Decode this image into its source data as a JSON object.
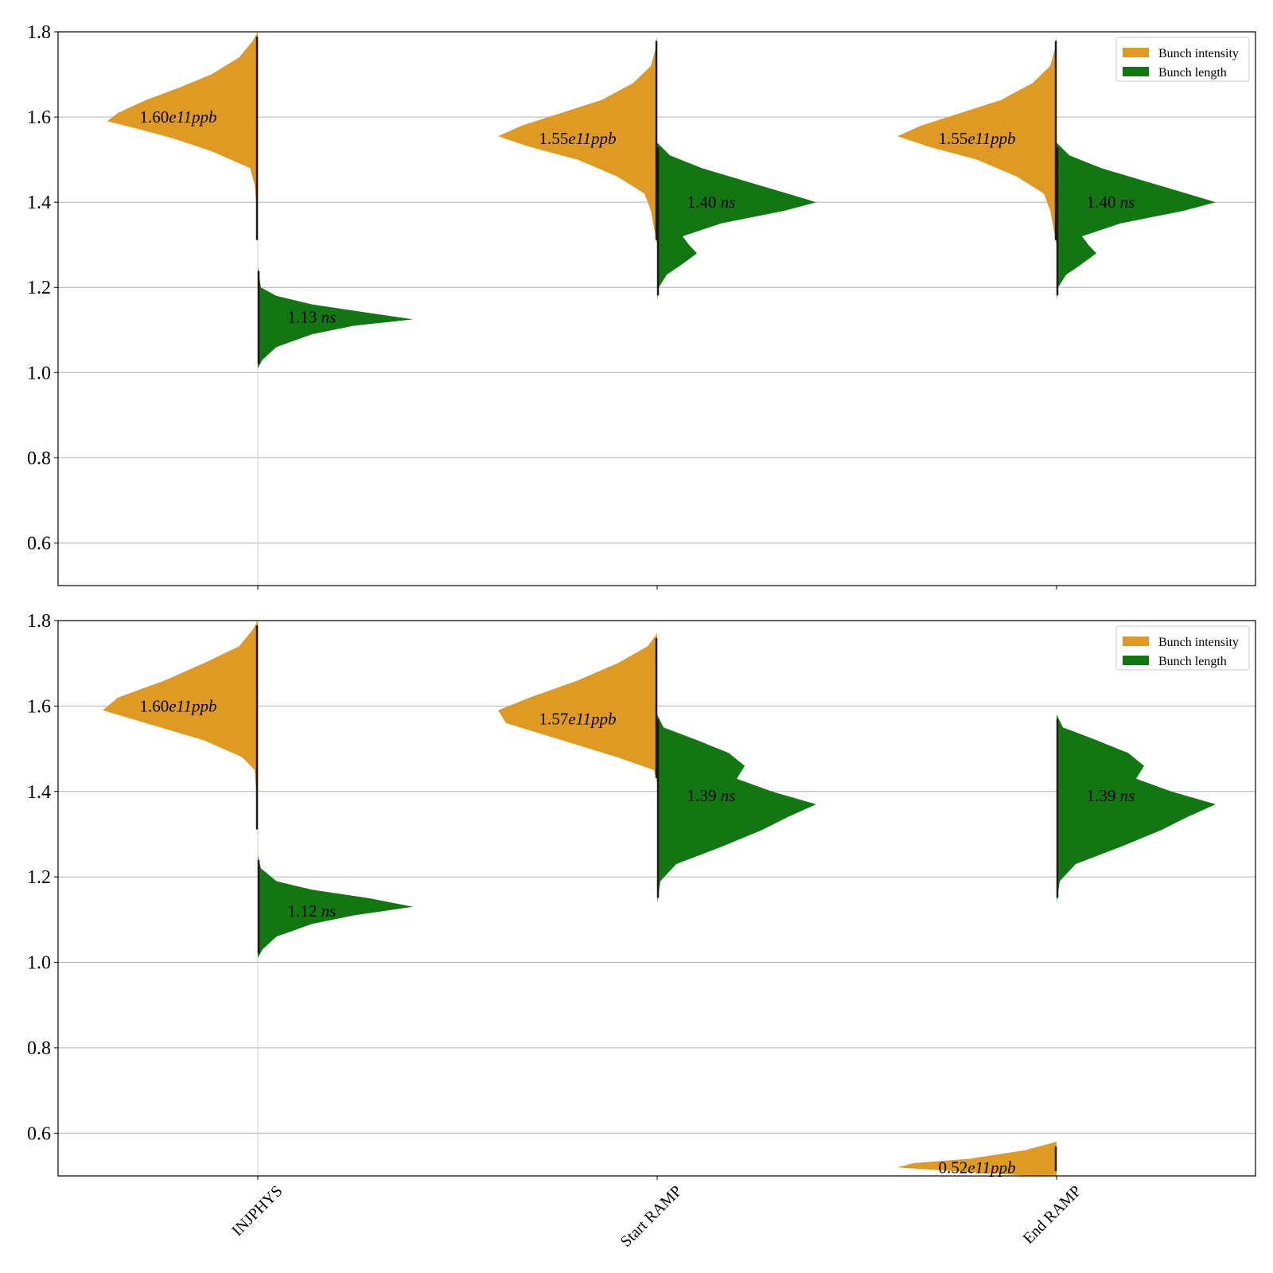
{
  "colors": {
    "intensity": "#DE9A22",
    "length": "#127612",
    "grid": "#b0b0b0",
    "median_line": "#1a1a1a"
  },
  "chart_data": [
    {
      "type": "violin",
      "ylim": [
        0.5,
        1.8
      ],
      "yticks": [
        "0.6",
        "0.8",
        "1.0",
        "1.2",
        "1.4",
        "1.6",
        "1.8"
      ],
      "grid": "horizontal",
      "categories": [
        "INJPHYS",
        "Start RAMP",
        "End RAMP"
      ],
      "legend": {
        "placement": "top-right",
        "entries": [
          "Bunch intensity",
          "Bunch length"
        ]
      },
      "series": [
        {
          "name": "Bunch intensity",
          "side": "left",
          "violins": [
            {
              "category": "INJPHYS",
              "median": 1.6,
              "label": {
                "value": "1.60",
                "unit": "e11ppb"
              },
              "profile": [
                [
                  1.3,
                  0.0
                ],
                [
                  1.4,
                  0.01
                ],
                [
                  1.44,
                  0.02
                ],
                [
                  1.48,
                  0.05
                ],
                [
                  1.52,
                  0.3
                ],
                [
                  1.55,
                  0.55
                ],
                [
                  1.57,
                  0.75
                ],
                [
                  1.59,
                  0.97
                ],
                [
                  1.61,
                  0.9
                ],
                [
                  1.64,
                  0.72
                ],
                [
                  1.67,
                  0.5
                ],
                [
                  1.7,
                  0.3
                ],
                [
                  1.74,
                  0.12
                ],
                [
                  1.78,
                  0.03
                ],
                [
                  1.8,
                  0.0
                ]
              ]
            },
            {
              "category": "Start RAMP",
              "median": 1.55,
              "label": {
                "value": "1.55",
                "unit": "e11ppb"
              },
              "profile": [
                [
                  1.3,
                  0.0
                ],
                [
                  1.34,
                  0.02
                ],
                [
                  1.38,
                  0.04
                ],
                [
                  1.42,
                  0.08
                ],
                [
                  1.46,
                  0.25
                ],
                [
                  1.5,
                  0.5
                ],
                [
                  1.53,
                  0.8
                ],
                [
                  1.555,
                  1.0
                ],
                [
                  1.58,
                  0.85
                ],
                [
                  1.61,
                  0.6
                ],
                [
                  1.64,
                  0.35
                ],
                [
                  1.68,
                  0.15
                ],
                [
                  1.72,
                  0.04
                ],
                [
                  1.76,
                  0.01
                ],
                [
                  1.79,
                  0.0
                ]
              ]
            },
            {
              "category": "End RAMP",
              "median": 1.55,
              "label": {
                "value": "1.55",
                "unit": "e11ppb"
              },
              "profile": [
                [
                  1.3,
                  0.0
                ],
                [
                  1.34,
                  0.02
                ],
                [
                  1.38,
                  0.04
                ],
                [
                  1.42,
                  0.08
                ],
                [
                  1.46,
                  0.25
                ],
                [
                  1.5,
                  0.5
                ],
                [
                  1.53,
                  0.8
                ],
                [
                  1.555,
                  1.0
                ],
                [
                  1.58,
                  0.85
                ],
                [
                  1.61,
                  0.6
                ],
                [
                  1.64,
                  0.35
                ],
                [
                  1.68,
                  0.15
                ],
                [
                  1.72,
                  0.04
                ],
                [
                  1.76,
                  0.01
                ],
                [
                  1.79,
                  0.0
                ]
              ]
            }
          ]
        },
        {
          "name": "Bunch length",
          "side": "right",
          "violins": [
            {
              "category": "INJPHYS",
              "median": 1.13,
              "label": {
                "value": "1.13",
                "unit": "ns"
              },
              "profile": [
                [
                  1.01,
                  0.0
                ],
                [
                  1.03,
                  0.03
                ],
                [
                  1.06,
                  0.12
                ],
                [
                  1.09,
                  0.35
                ],
                [
                  1.11,
                  0.62
                ],
                [
                  1.125,
                  1.0
                ],
                [
                  1.14,
                  0.72
                ],
                [
                  1.16,
                  0.35
                ],
                [
                  1.18,
                  0.12
                ],
                [
                  1.2,
                  0.02
                ],
                [
                  1.25,
                  0.0
                ]
              ]
            },
            {
              "category": "Start RAMP",
              "median": 1.4,
              "label": {
                "value": "1.40",
                "unit": "ns"
              },
              "profile": [
                [
                  1.17,
                  0.0
                ],
                [
                  1.2,
                  0.01
                ],
                [
                  1.23,
                  0.06
                ],
                [
                  1.25,
                  0.14
                ],
                [
                  1.28,
                  0.25
                ],
                [
                  1.3,
                  0.2
                ],
                [
                  1.32,
                  0.16
                ],
                [
                  1.35,
                  0.4
                ],
                [
                  1.38,
                  0.8
                ],
                [
                  1.4,
                  1.0
                ],
                [
                  1.42,
                  0.82
                ],
                [
                  1.45,
                  0.55
                ],
                [
                  1.48,
                  0.28
                ],
                [
                  1.51,
                  0.08
                ],
                [
                  1.54,
                  0.0
                ]
              ]
            },
            {
              "category": "End RAMP",
              "median": 1.4,
              "label": {
                "value": "1.40",
                "unit": "ns"
              },
              "profile": [
                [
                  1.17,
                  0.0
                ],
                [
                  1.2,
                  0.01
                ],
                [
                  1.23,
                  0.06
                ],
                [
                  1.25,
                  0.14
                ],
                [
                  1.28,
                  0.25
                ],
                [
                  1.3,
                  0.2
                ],
                [
                  1.32,
                  0.16
                ],
                [
                  1.35,
                  0.4
                ],
                [
                  1.38,
                  0.8
                ],
                [
                  1.4,
                  1.0
                ],
                [
                  1.42,
                  0.82
                ],
                [
                  1.45,
                  0.55
                ],
                [
                  1.48,
                  0.28
                ],
                [
                  1.51,
                  0.08
                ],
                [
                  1.54,
                  0.0
                ]
              ]
            }
          ]
        }
      ]
    },
    {
      "type": "violin",
      "ylim": [
        0.5,
        1.8
      ],
      "yticks": [
        "0.6",
        "0.8",
        "1.0",
        "1.2",
        "1.4",
        "1.6",
        "1.8"
      ],
      "grid": "horizontal",
      "categories": [
        "INJPHYS",
        "Start RAMP",
        "End RAMP"
      ],
      "legend": {
        "placement": "top-right",
        "entries": [
          "Bunch intensity",
          "Bunch length"
        ]
      },
      "series": [
        {
          "name": "Bunch intensity",
          "side": "left",
          "violins": [
            {
              "category": "INJPHYS",
              "median": 1.6,
              "label": {
                "value": "1.60",
                "unit": "e11ppb"
              },
              "profile": [
                [
                  1.3,
                  0.0
                ],
                [
                  1.4,
                  0.01
                ],
                [
                  1.45,
                  0.02
                ],
                [
                  1.48,
                  0.1
                ],
                [
                  1.52,
                  0.35
                ],
                [
                  1.56,
                  0.72
                ],
                [
                  1.59,
                  1.0
                ],
                [
                  1.62,
                  0.9
                ],
                [
                  1.66,
                  0.6
                ],
                [
                  1.7,
                  0.35
                ],
                [
                  1.74,
                  0.12
                ],
                [
                  1.78,
                  0.03
                ],
                [
                  1.8,
                  0.0
                ]
              ]
            },
            {
              "category": "Start RAMP",
              "median": 1.57,
              "label": {
                "value": "1.57",
                "unit": "e11ppb"
              },
              "profile": [
                [
                  1.42,
                  0.0
                ],
                [
                  1.45,
                  0.02
                ],
                [
                  1.48,
                  0.25
                ],
                [
                  1.52,
                  0.6
                ],
                [
                  1.56,
                  0.95
                ],
                [
                  1.59,
                  1.0
                ],
                [
                  1.62,
                  0.8
                ],
                [
                  1.66,
                  0.5
                ],
                [
                  1.7,
                  0.25
                ],
                [
                  1.74,
                  0.06
                ],
                [
                  1.77,
                  0.0
                ]
              ]
            },
            {
              "category": "End RAMP",
              "median": 0.52,
              "label": {
                "value": "0.52",
                "unit": "e11ppb"
              },
              "profile": [
                [
                  0.5,
                  0.15
                ],
                [
                  0.51,
                  0.6
                ],
                [
                  0.52,
                  1.0
                ],
                [
                  0.53,
                  0.9
                ],
                [
                  0.54,
                  0.55
                ],
                [
                  0.56,
                  0.2
                ],
                [
                  0.58,
                  0.0
                ]
              ]
            }
          ]
        },
        {
          "name": "Bunch length",
          "side": "right",
          "violins": [
            {
              "category": "INJPHYS",
              "median": 1.12,
              "label": {
                "value": "1.12",
                "unit": "ns"
              },
              "profile": [
                [
                  1.01,
                  0.0
                ],
                [
                  1.03,
                  0.03
                ],
                [
                  1.06,
                  0.12
                ],
                [
                  1.09,
                  0.35
                ],
                [
                  1.11,
                  0.62
                ],
                [
                  1.13,
                  1.0
                ],
                [
                  1.15,
                  0.72
                ],
                [
                  1.17,
                  0.35
                ],
                [
                  1.19,
                  0.12
                ],
                [
                  1.22,
                  0.02
                ],
                [
                  1.25,
                  0.0
                ]
              ]
            },
            {
              "category": "Start RAMP",
              "median": 1.39,
              "label": {
                "value": "1.39",
                "unit": "ns"
              },
              "profile": [
                [
                  1.14,
                  0.0
                ],
                [
                  1.19,
                  0.02
                ],
                [
                  1.23,
                  0.12
                ],
                [
                  1.27,
                  0.4
                ],
                [
                  1.31,
                  0.66
                ],
                [
                  1.34,
                  0.82
                ],
                [
                  1.37,
                  1.0
                ],
                [
                  1.4,
                  0.72
                ],
                [
                  1.43,
                  0.5
                ],
                [
                  1.46,
                  0.55
                ],
                [
                  1.49,
                  0.45
                ],
                [
                  1.52,
                  0.25
                ],
                [
                  1.55,
                  0.04
                ],
                [
                  1.58,
                  0.0
                ]
              ]
            },
            {
              "category": "End RAMP",
              "median": 1.39,
              "label": {
                "value": "1.39",
                "unit": "ns"
              },
              "profile": [
                [
                  1.14,
                  0.0
                ],
                [
                  1.19,
                  0.02
                ],
                [
                  1.23,
                  0.12
                ],
                [
                  1.27,
                  0.4
                ],
                [
                  1.31,
                  0.66
                ],
                [
                  1.34,
                  0.82
                ],
                [
                  1.37,
                  1.0
                ],
                [
                  1.4,
                  0.72
                ],
                [
                  1.43,
                  0.5
                ],
                [
                  1.46,
                  0.55
                ],
                [
                  1.49,
                  0.45
                ],
                [
                  1.52,
                  0.25
                ],
                [
                  1.55,
                  0.04
                ],
                [
                  1.58,
                  0.0
                ]
              ]
            }
          ]
        }
      ]
    }
  ]
}
